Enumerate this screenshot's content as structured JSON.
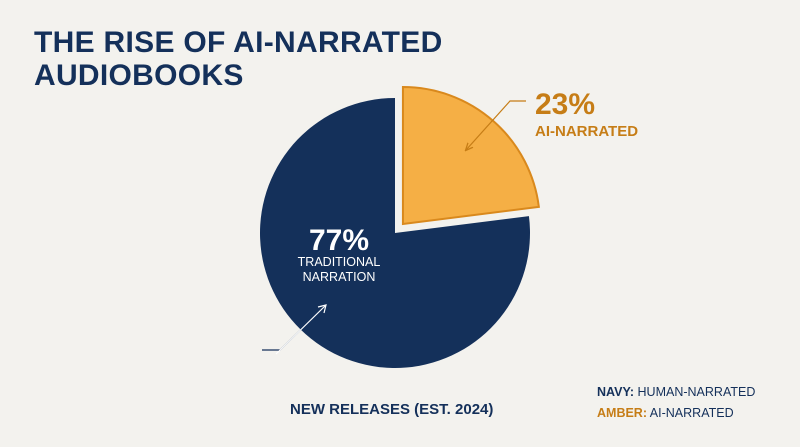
{
  "title": {
    "line1": "THE RISE OF AI-NARRATED",
    "line2": "AUDIOBOOKS"
  },
  "caption": "NEW RELEASES (EST. 2024)",
  "legend": [
    {
      "key": "NAVY:",
      "text": "HUMAN-NARRATED",
      "color": "#14305a"
    },
    {
      "key": "AMBER:",
      "text": "AI-NARRATED",
      "color": "#c67d16"
    }
  ],
  "colors": {
    "background": "#f3f2ee",
    "navy": "#14305a",
    "amber": "#f5af45",
    "amber_text": "#c67d16",
    "amber_stroke": "#d9891d"
  },
  "chart_data": {
    "type": "pie",
    "slices": [
      {
        "value": 23,
        "label_value": "23%",
        "label_text": "AI-NARRATED",
        "color": "#f5af45",
        "exploded": true
      },
      {
        "value": 77,
        "label_value": "77%",
        "label_text_lines": [
          "TRADITIONAL",
          "NARRATION"
        ],
        "color": "#14305a",
        "exploded": false
      }
    ]
  }
}
